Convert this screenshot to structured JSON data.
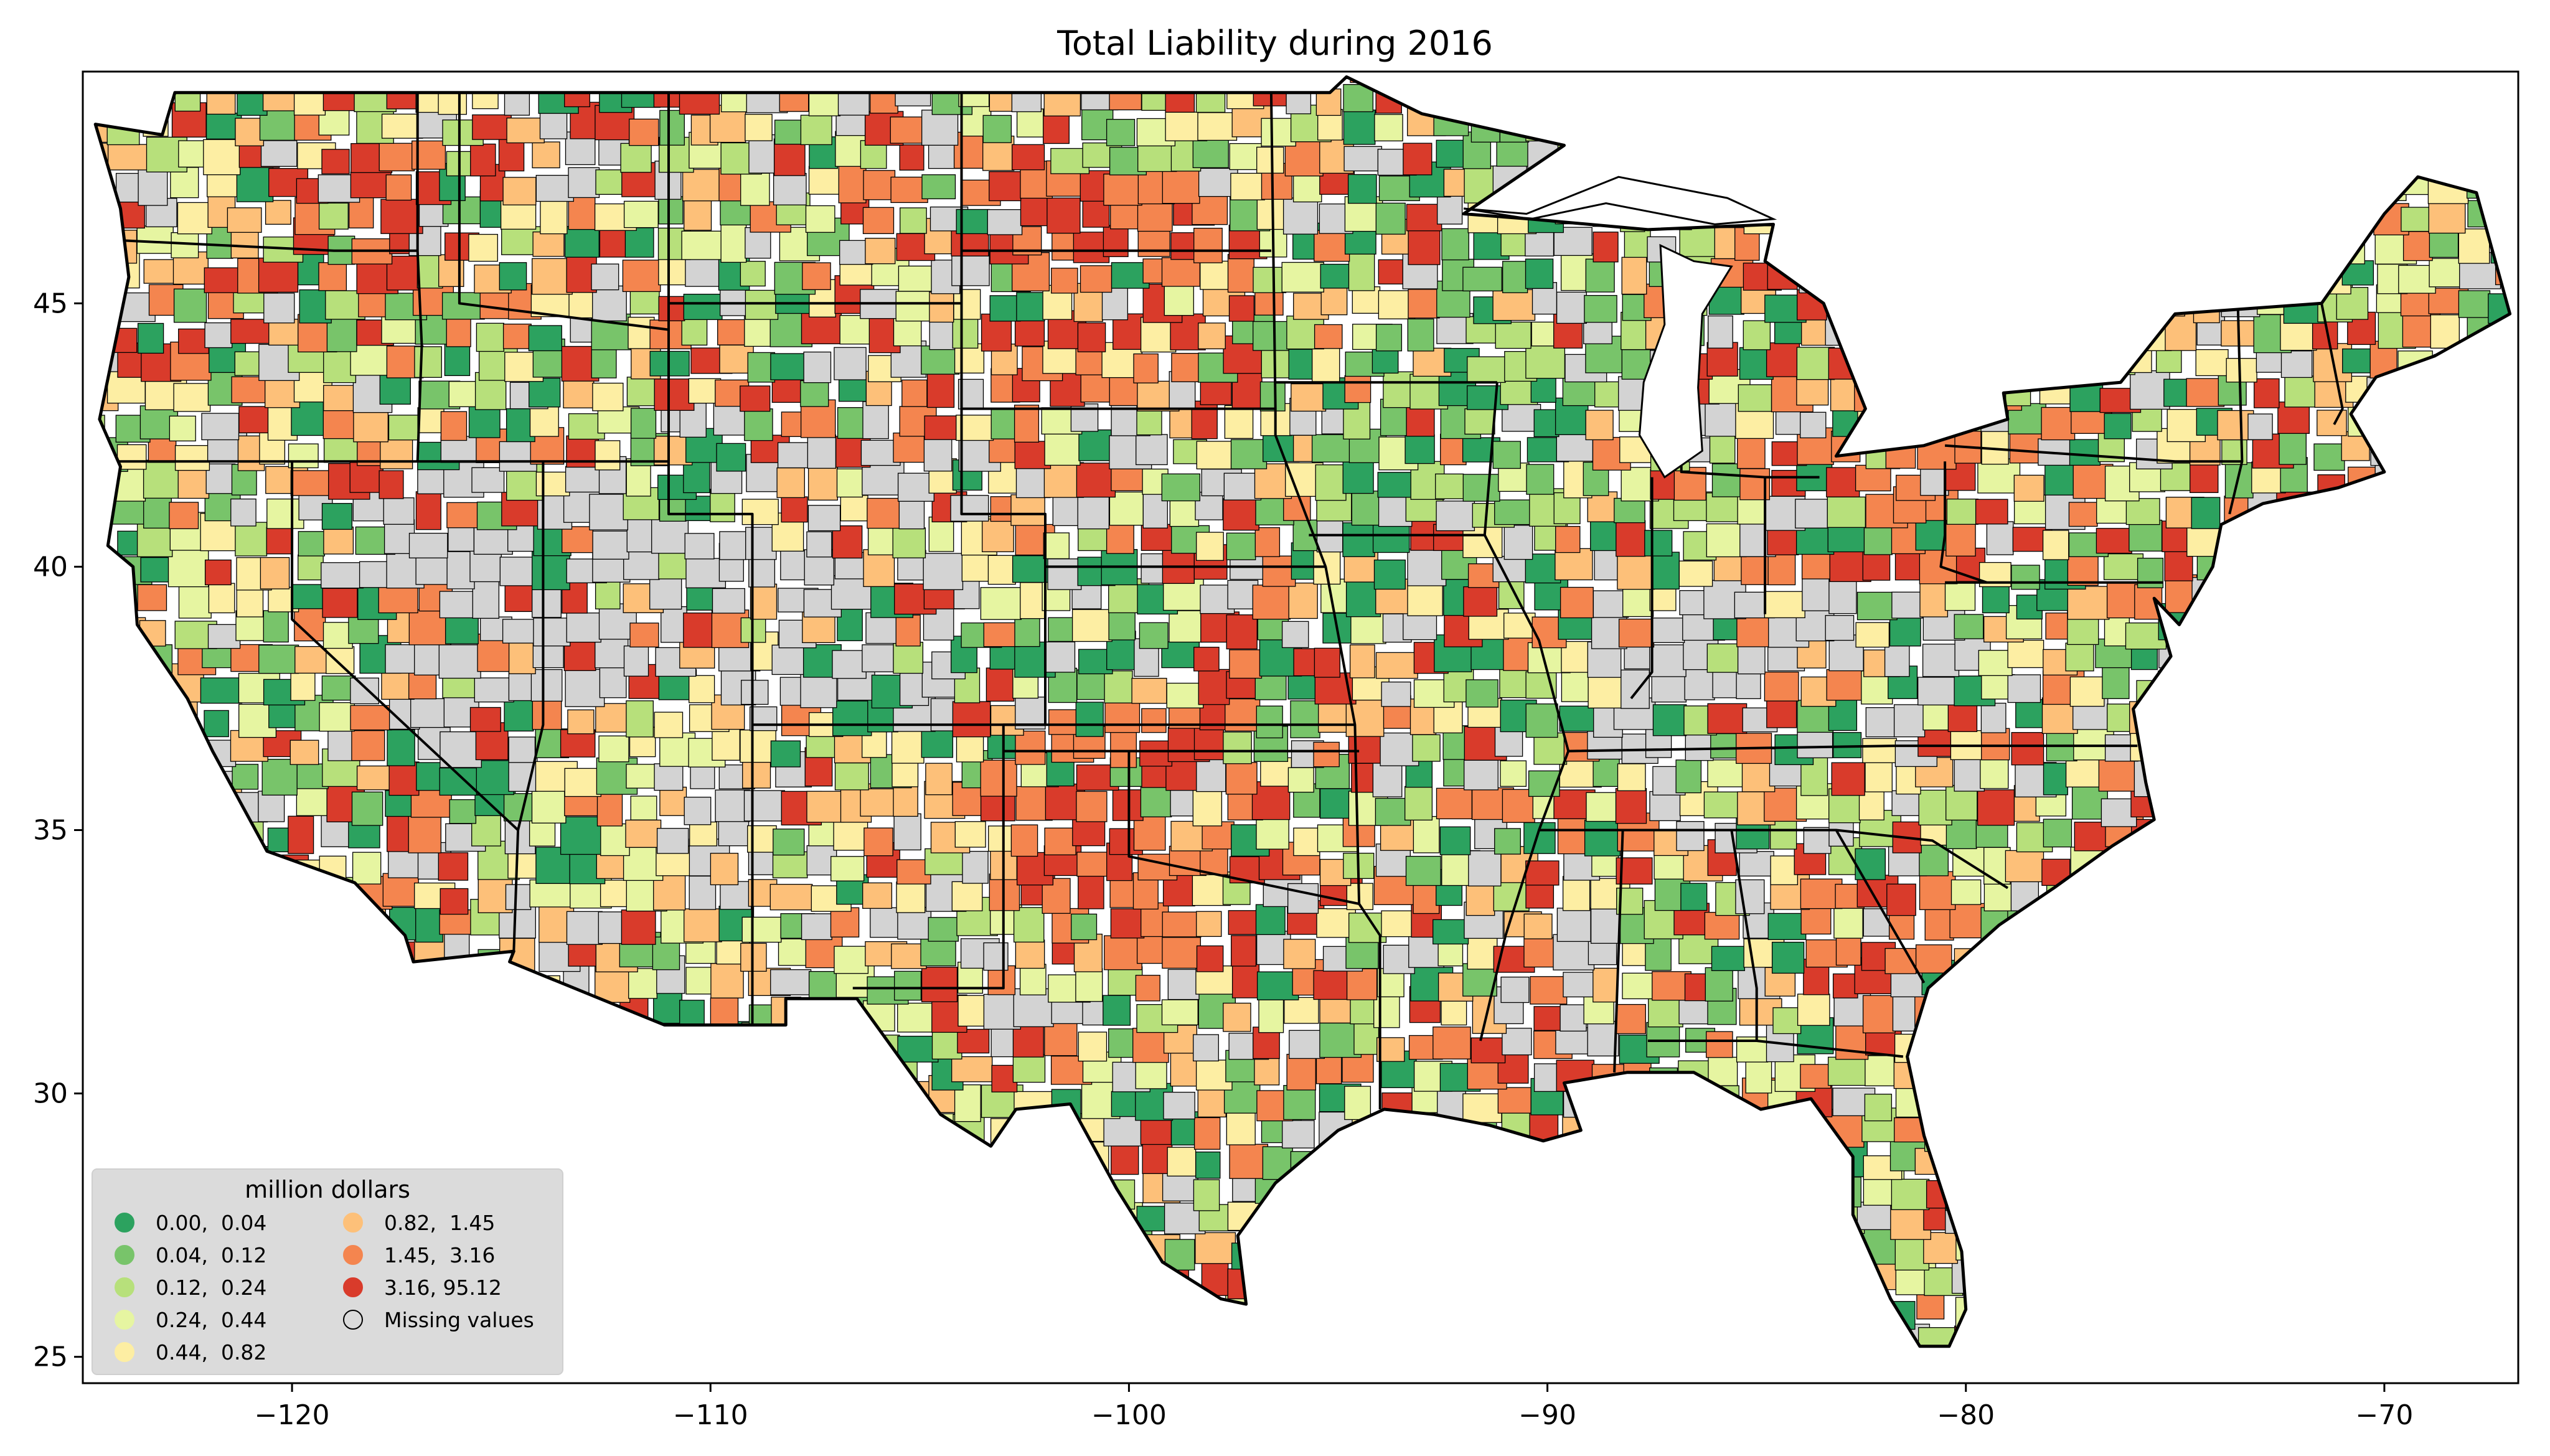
{
  "title": "Total Liability during 2016",
  "map": {
    "type": "choropleth",
    "region": "Contiguous United States counties",
    "lon_range": [
      -125,
      -66.8
    ],
    "lat_range": [
      24.5,
      49.4
    ],
    "x_ticks": [
      {
        "value": -120,
        "label": "−120"
      },
      {
        "value": -110,
        "label": "−110"
      },
      {
        "value": -100,
        "label": "−100"
      },
      {
        "value": -90,
        "label": "−90"
      },
      {
        "value": -80,
        "label": "−80"
      },
      {
        "value": -70,
        "label": "−70"
      }
    ],
    "y_ticks": [
      {
        "value": 25,
        "label": "25"
      },
      {
        "value": 30,
        "label": "30"
      },
      {
        "value": 35,
        "label": "35"
      },
      {
        "value": 40,
        "label": "40"
      },
      {
        "value": 45,
        "label": "45"
      }
    ],
    "missing_color": "#d3d3d3"
  },
  "legend": {
    "title": "million dollars",
    "placement": "lower-left",
    "items": [
      {
        "label": "0.00,  0.04",
        "color": "#2ca25f"
      },
      {
        "label": "0.04,  0.12",
        "color": "#78c46a"
      },
      {
        "label": "0.12,  0.24",
        "color": "#b7e07b"
      },
      {
        "label": "0.24,  0.44",
        "color": "#e6f5a1"
      },
      {
        "label": "0.44,  0.82",
        "color": "#fdeea3"
      },
      {
        "label": "0.82,  1.45",
        "color": "#fdc079"
      },
      {
        "label": "1.45,  3.16",
        "color": "#f4854f"
      },
      {
        "label": "3.16, 95.12",
        "color": "#d93b2b"
      },
      {
        "label": "Missing values",
        "color": "none"
      }
    ]
  }
}
